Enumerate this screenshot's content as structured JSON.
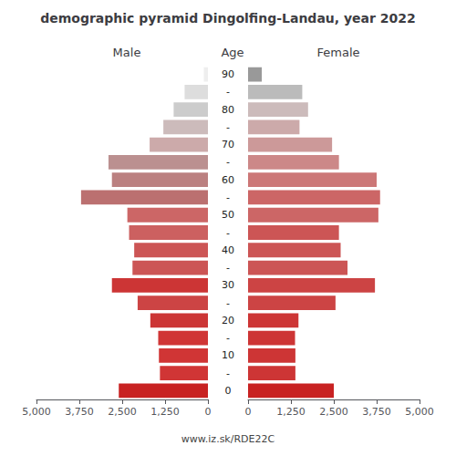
{
  "chart_data": {
    "type": "bar",
    "orientation": "horizontal",
    "title": "demographic pyramid Dingolfing-Landau, year 2022",
    "ylabel": "Age",
    "annotations": [
      "www.iz.sk/RDE22C"
    ],
    "categories": [
      "0",
      "-",
      "10",
      "-",
      "20",
      "-",
      "30",
      "-",
      "40",
      "-",
      "50",
      "-",
      "60",
      "-",
      "70",
      "-",
      "80",
      "-",
      "90"
    ],
    "series": [
      {
        "name": "Male",
        "colors": [
          "#c82222",
          "#d03535",
          "#d03535",
          "#d03535",
          "#cc3535",
          "#cc4444",
          "#cc3535",
          "#cc5555",
          "#cc5555",
          "#cc6060",
          "#cc6666",
          "#bb7070",
          "#bb8080",
          "#bb9090",
          "#ccaaaa",
          "#ccbbbb",
          "#cccccc",
          "#dddddd",
          "#eeeeee"
        ],
        "values": [
          2600,
          1400,
          1430,
          1450,
          1680,
          2050,
          2800,
          2200,
          2150,
          2300,
          2350,
          3700,
          2800,
          2900,
          1700,
          1300,
          1000,
          680,
          120
        ]
      },
      {
        "name": "Female",
        "colors": [
          "#c82222",
          "#cd3535",
          "#cd3535",
          "#cd3535",
          "#cd3535",
          "#cc4444",
          "#cc4444",
          "#cc5555",
          "#cc5555",
          "#cc5555",
          "#cc6666",
          "#cc6666",
          "#cc7777",
          "#cc8888",
          "#cc9999",
          "#ccaaaa",
          "#ccbbbb",
          "#bbbbbb",
          "#999999"
        ],
        "values": [
          2500,
          1380,
          1380,
          1370,
          1470,
          2550,
          3700,
          2900,
          2700,
          2650,
          3800,
          3850,
          3750,
          2650,
          2450,
          1500,
          1750,
          1580,
          400
        ]
      }
    ],
    "xlim": [
      0,
      5000
    ],
    "xticks": [
      0,
      1250,
      2500,
      3750,
      5000
    ],
    "grid": false
  }
}
